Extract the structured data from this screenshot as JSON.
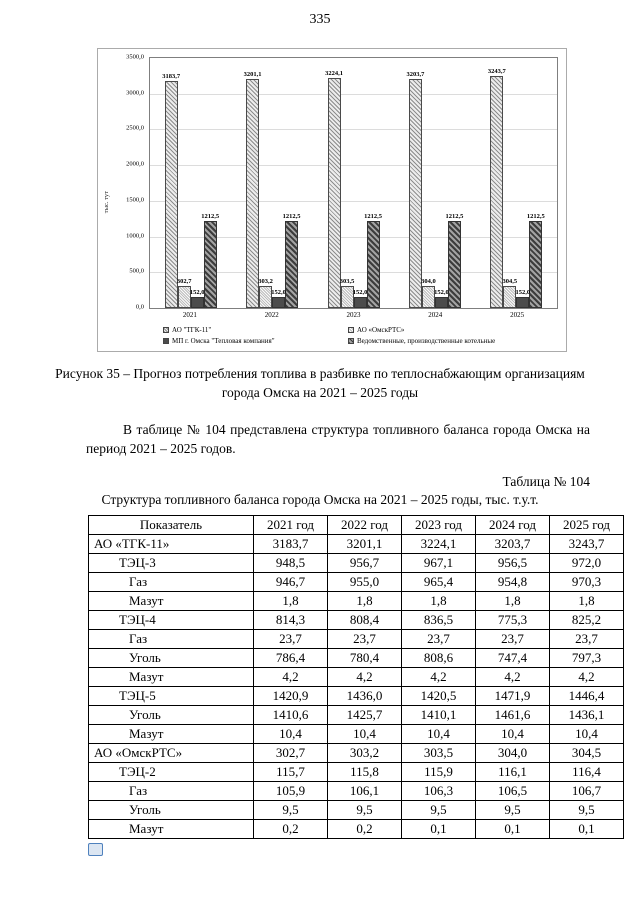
{
  "page": {
    "number": "335"
  },
  "figure": {
    "caption": "Рисунок 35 – Прогноз потребления топлива в разбивке по теплоснабжающим организациям города Омска на 2021 – 2025 годы"
  },
  "paragraph": "В таблице № 104 представлена структура топливного баланса города Омска на период 2021 – 2025 годов.",
  "table": {
    "label": "Таблица № 104",
    "title": "Структура топливного баланса города Омска на 2021 – 2025 годы, тыс. т.у.т.",
    "headers": [
      "Показатель",
      "2021 год",
      "2022 год",
      "2023 год",
      "2024 год",
      "2025 год"
    ],
    "rows": [
      {
        "name": "АО «ТГК-11»",
        "level": 0,
        "values": [
          "3183,7",
          "3201,1",
          "3224,1",
          "3203,7",
          "3243,7"
        ]
      },
      {
        "name": "ТЭЦ-3",
        "level": 1,
        "values": [
          "948,5",
          "956,7",
          "967,1",
          "956,5",
          "972,0"
        ]
      },
      {
        "name": "Газ",
        "level": 2,
        "values": [
          "946,7",
          "955,0",
          "965,4",
          "954,8",
          "970,3"
        ]
      },
      {
        "name": "Мазут",
        "level": 2,
        "values": [
          "1,8",
          "1,8",
          "1,8",
          "1,8",
          "1,8"
        ]
      },
      {
        "name": "ТЭЦ-4",
        "level": 1,
        "values": [
          "814,3",
          "808,4",
          "836,5",
          "775,3",
          "825,2"
        ]
      },
      {
        "name": "Газ",
        "level": 2,
        "values": [
          "23,7",
          "23,7",
          "23,7",
          "23,7",
          "23,7"
        ]
      },
      {
        "name": "Уголь",
        "level": 2,
        "values": [
          "786,4",
          "780,4",
          "808,6",
          "747,4",
          "797,3"
        ]
      },
      {
        "name": "Мазут",
        "level": 2,
        "values": [
          "4,2",
          "4,2",
          "4,2",
          "4,2",
          "4,2"
        ]
      },
      {
        "name": "ТЭЦ-5",
        "level": 1,
        "values": [
          "1420,9",
          "1436,0",
          "1420,5",
          "1471,9",
          "1446,4"
        ]
      },
      {
        "name": "Уголь",
        "level": 2,
        "values": [
          "1410,6",
          "1425,7",
          "1410,1",
          "1461,6",
          "1436,1"
        ]
      },
      {
        "name": "Мазут",
        "level": 2,
        "values": [
          "10,4",
          "10,4",
          "10,4",
          "10,4",
          "10,4"
        ]
      },
      {
        "name": "АО «ОмскРТС»",
        "level": 0,
        "values": [
          "302,7",
          "303,2",
          "303,5",
          "304,0",
          "304,5"
        ]
      },
      {
        "name": "ТЭЦ-2",
        "level": 1,
        "values": [
          "115,7",
          "115,8",
          "115,9",
          "116,1",
          "116,4"
        ]
      },
      {
        "name": "Газ",
        "level": 2,
        "values": [
          "105,9",
          "106,1",
          "106,3",
          "106,5",
          "106,7"
        ]
      },
      {
        "name": "Уголь",
        "level": 2,
        "values": [
          "9,5",
          "9,5",
          "9,5",
          "9,5",
          "9,5"
        ]
      },
      {
        "name": "Мазут",
        "level": 2,
        "values": [
          "0,2",
          "0,2",
          "0,1",
          "0,1",
          "0,1"
        ]
      }
    ]
  },
  "chart_data": {
    "type": "bar",
    "title": "",
    "xlabel": "",
    "ylabel": "тыс. тут",
    "ylim": [
      0,
      3500
    ],
    "ytick_step": 500,
    "yticks": [
      "3500,0",
      "3000,0",
      "2500,0",
      "2000,0",
      "1500,0",
      "1000,0",
      "500,0",
      "0,0"
    ],
    "categories": [
      "2021",
      "2022",
      "2023",
      "2024",
      "2025"
    ],
    "series": [
      {
        "name": "АО \"ТГК-11\"",
        "values": [
          3183.7,
          3201.1,
          3224.1,
          3203.7,
          3243.7
        ]
      },
      {
        "name": "АО «ОмскРТС»",
        "values": [
          302.7,
          303.2,
          303.5,
          304.0,
          304.5
        ]
      },
      {
        "name": "МП г. Омска \"Тепловая компания\"",
        "values": [
          152.0,
          152.0,
          152.0,
          152.0,
          152.0
        ]
      },
      {
        "name": "Ведомственные, производственные котельные",
        "values": [
          1212.5,
          1212.5,
          1212.5,
          1212.5,
          1212.5
        ]
      }
    ],
    "grid": true,
    "legend_position": "bottom"
  },
  "icons": {
    "bottom_left": "object-anchor"
  }
}
